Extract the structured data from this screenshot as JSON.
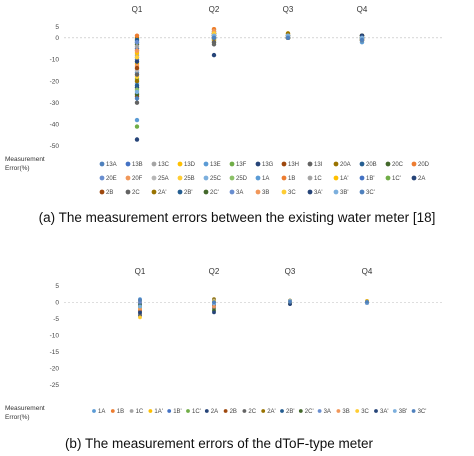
{
  "captions": {
    "a": "(a) The measurement errors between the existing water meter [18]",
    "b": "(b) The measurement errors of the dToF-type meter"
  },
  "chart_data": [
    {
      "type": "scatter",
      "categories": [
        "Q1",
        "Q2",
        "Q3",
        "Q4"
      ],
      "ylabel_lines": [
        "Measurement",
        "Error(%)"
      ],
      "ylim": [
        -50,
        5
      ],
      "yticks": [
        5,
        0,
        -10,
        -20,
        -30,
        -40,
        -50
      ],
      "ytick_labels": [
        "5",
        "0",
        "-10",
        "-20",
        "-30",
        "-40",
        "-50"
      ],
      "grid": false,
      "legend_position": "bottom",
      "series": [
        {
          "name": "13A",
          "color": "#4f81bd",
          "values": [
            -2,
            3,
            1,
            0
          ]
        },
        {
          "name": "13B",
          "color": "#4472c4",
          "values": [
            -5,
            2,
            0,
            -1
          ]
        },
        {
          "name": "13C",
          "color": "#a5a5a5",
          "values": [
            -8,
            1,
            1,
            1
          ]
        },
        {
          "name": "13D",
          "color": "#ffc000",
          "values": [
            -12,
            4,
            2,
            0
          ]
        },
        {
          "name": "13E",
          "color": "#5b9bd5",
          "values": [
            -16,
            0,
            0,
            -2
          ]
        },
        {
          "name": "13F",
          "color": "#70ad47",
          "values": [
            -19,
            1,
            1,
            0
          ]
        },
        {
          "name": "13G",
          "color": "#264478",
          "values": [
            -23,
            -1,
            0,
            1
          ]
        },
        {
          "name": "13H",
          "color": "#9e480e",
          "values": [
            -27,
            2,
            1,
            -1
          ]
        },
        {
          "name": "13I",
          "color": "#636363",
          "values": [
            -30,
            -3,
            0,
            0
          ]
        },
        {
          "name": "20A",
          "color": "#997300",
          "values": [
            0,
            1,
            2,
            1
          ]
        },
        {
          "name": "20B",
          "color": "#255e91",
          "values": [
            -1,
            0,
            1,
            0
          ]
        },
        {
          "name": "20C",
          "color": "#43682b",
          "values": [
            -3,
            2,
            0,
            -1
          ]
        },
        {
          "name": "20D",
          "color": "#ed7d31",
          "values": [
            -6,
            4,
            1,
            0
          ]
        },
        {
          "name": "20E",
          "color": "#698ed0",
          "values": [
            -9,
            1,
            0,
            1
          ]
        },
        {
          "name": "20F",
          "color": "#f1975a",
          "values": [
            -13,
            0,
            1,
            0
          ]
        },
        {
          "name": "25A",
          "color": "#b7b7b7",
          "values": [
            -15,
            3,
            0,
            -1
          ]
        },
        {
          "name": "25B",
          "color": "#ffcd33",
          "values": [
            -18,
            2,
            1,
            0
          ]
        },
        {
          "name": "25C",
          "color": "#7cafdd",
          "values": [
            -21,
            1,
            0,
            1
          ]
        },
        {
          "name": "25D",
          "color": "#8cc168",
          "values": [
            -24,
            -2,
            0,
            0
          ]
        },
        {
          "name": "1A",
          "color": "#5b9bd5",
          "values": [
            -38,
            0,
            1,
            0
          ]
        },
        {
          "name": "1B",
          "color": "#ed7d31",
          "values": [
            1,
            1,
            0,
            -1
          ]
        },
        {
          "name": "1C",
          "color": "#a5a5a5",
          "values": [
            -4,
            2,
            1,
            0
          ]
        },
        {
          "name": "1A'",
          "color": "#ffc000",
          "values": [
            -7,
            -1,
            0,
            1
          ]
        },
        {
          "name": "1B'",
          "color": "#4472c4",
          "values": [
            -10,
            1,
            1,
            0
          ]
        },
        {
          "name": "1C'",
          "color": "#70ad47",
          "values": [
            -41,
            2,
            0,
            -1
          ]
        },
        {
          "name": "2A",
          "color": "#264478",
          "values": [
            -11,
            0,
            1,
            0
          ]
        },
        {
          "name": "2B",
          "color": "#9e480e",
          "values": [
            -14,
            1,
            0,
            1
          ]
        },
        {
          "name": "2C",
          "color": "#636363",
          "values": [
            -17,
            -2,
            1,
            0
          ]
        },
        {
          "name": "2A'",
          "color": "#997300",
          "values": [
            -20,
            1,
            0,
            -1
          ]
        },
        {
          "name": "2B'",
          "color": "#255e91",
          "values": [
            -22,
            2,
            1,
            0
          ]
        },
        {
          "name": "2C'",
          "color": "#43682b",
          "values": [
            -26,
            0,
            0,
            1
          ]
        },
        {
          "name": "3A",
          "color": "#698ed0",
          "values": [
            -2,
            1,
            1,
            0
          ]
        },
        {
          "name": "3B",
          "color": "#f1975a",
          "values": [
            -6,
            3,
            0,
            -1
          ]
        },
        {
          "name": "3C",
          "color": "#ffcd33",
          "values": [
            -9,
            2,
            1,
            0
          ]
        },
        {
          "name": "3A'",
          "color": "#264478",
          "values": [
            -47,
            -8,
            0,
            1
          ]
        },
        {
          "name": "3B'",
          "color": "#7cafdd",
          "values": [
            -25,
            1,
            1,
            0
          ]
        },
        {
          "name": "3C'",
          "color": "#4f81bd",
          "values": [
            -28,
            0,
            0,
            -1
          ]
        }
      ]
    },
    {
      "type": "scatter",
      "categories": [
        "Q1",
        "Q2",
        "Q3",
        "Q4"
      ],
      "ylabel_lines": [
        "Measurement",
        "Error(%)"
      ],
      "ylim": [
        -25,
        5
      ],
      "yticks": [
        5,
        0,
        -5,
        -10,
        -15,
        -20,
        -25
      ],
      "ytick_labels": [
        "5",
        "0",
        "-5",
        "-10",
        "-15",
        "-20",
        "-25"
      ],
      "grid": false,
      "legend_position": "bottom",
      "series": [
        {
          "name": "1A",
          "color": "#5b9bd5",
          "values": [
            1,
            0.5,
            0.3,
            0.2
          ]
        },
        {
          "name": "1B",
          "color": "#ed7d31",
          "values": [
            0,
            0.2,
            0.5,
            0.4
          ]
        },
        {
          "name": "1C",
          "color": "#a5a5a5",
          "values": [
            -1,
            -0.5,
            0,
            0
          ]
        },
        {
          "name": "1A'",
          "color": "#ffc000",
          "values": [
            -2,
            0.8,
            0.2,
            0.1
          ]
        },
        {
          "name": "1B'",
          "color": "#4472c4",
          "values": [
            -3,
            -1,
            -0.2,
            -0.1
          ]
        },
        {
          "name": "1C'",
          "color": "#70ad47",
          "values": [
            -1.5,
            -2,
            0.1,
            0.3
          ]
        },
        {
          "name": "2A",
          "color": "#264478",
          "values": [
            -4,
            -0.8,
            0.4,
            0
          ]
        },
        {
          "name": "2B",
          "color": "#9e480e",
          "values": [
            -2.5,
            0.3,
            -0.3,
            0.2
          ]
        },
        {
          "name": "2C",
          "color": "#636363",
          "values": [
            -3.5,
            -1.5,
            0,
            -0.2
          ]
        },
        {
          "name": "2A'",
          "color": "#997300",
          "values": [
            0.5,
            1,
            0.6,
            0.5
          ]
        },
        {
          "name": "2B'",
          "color": "#255e91",
          "values": [
            -0.5,
            0,
            0.2,
            0
          ]
        },
        {
          "name": "2C'",
          "color": "#43682b",
          "values": [
            -1,
            -2.5,
            -0.4,
            0.3
          ]
        },
        {
          "name": "3A",
          "color": "#698ed0",
          "values": [
            0.2,
            0.6,
            0.1,
            -0.2
          ]
        },
        {
          "name": "3B",
          "color": "#f1975a",
          "values": [
            -2,
            -1.2,
            0.3,
            0.1
          ]
        },
        {
          "name": "3C",
          "color": "#ffcd33",
          "values": [
            -4.5,
            0.4,
            0,
            0.4
          ]
        },
        {
          "name": "3A'",
          "color": "#264478",
          "values": [
            -3,
            -3,
            -0.5,
            0
          ]
        },
        {
          "name": "3B'",
          "color": "#7cafdd",
          "values": [
            -1.2,
            -0.3,
            0.5,
            -0.1
          ]
        },
        {
          "name": "3C'",
          "color": "#4f81bd",
          "values": [
            0.8,
            0.1,
            0.2,
            0.2
          ]
        }
      ]
    }
  ]
}
